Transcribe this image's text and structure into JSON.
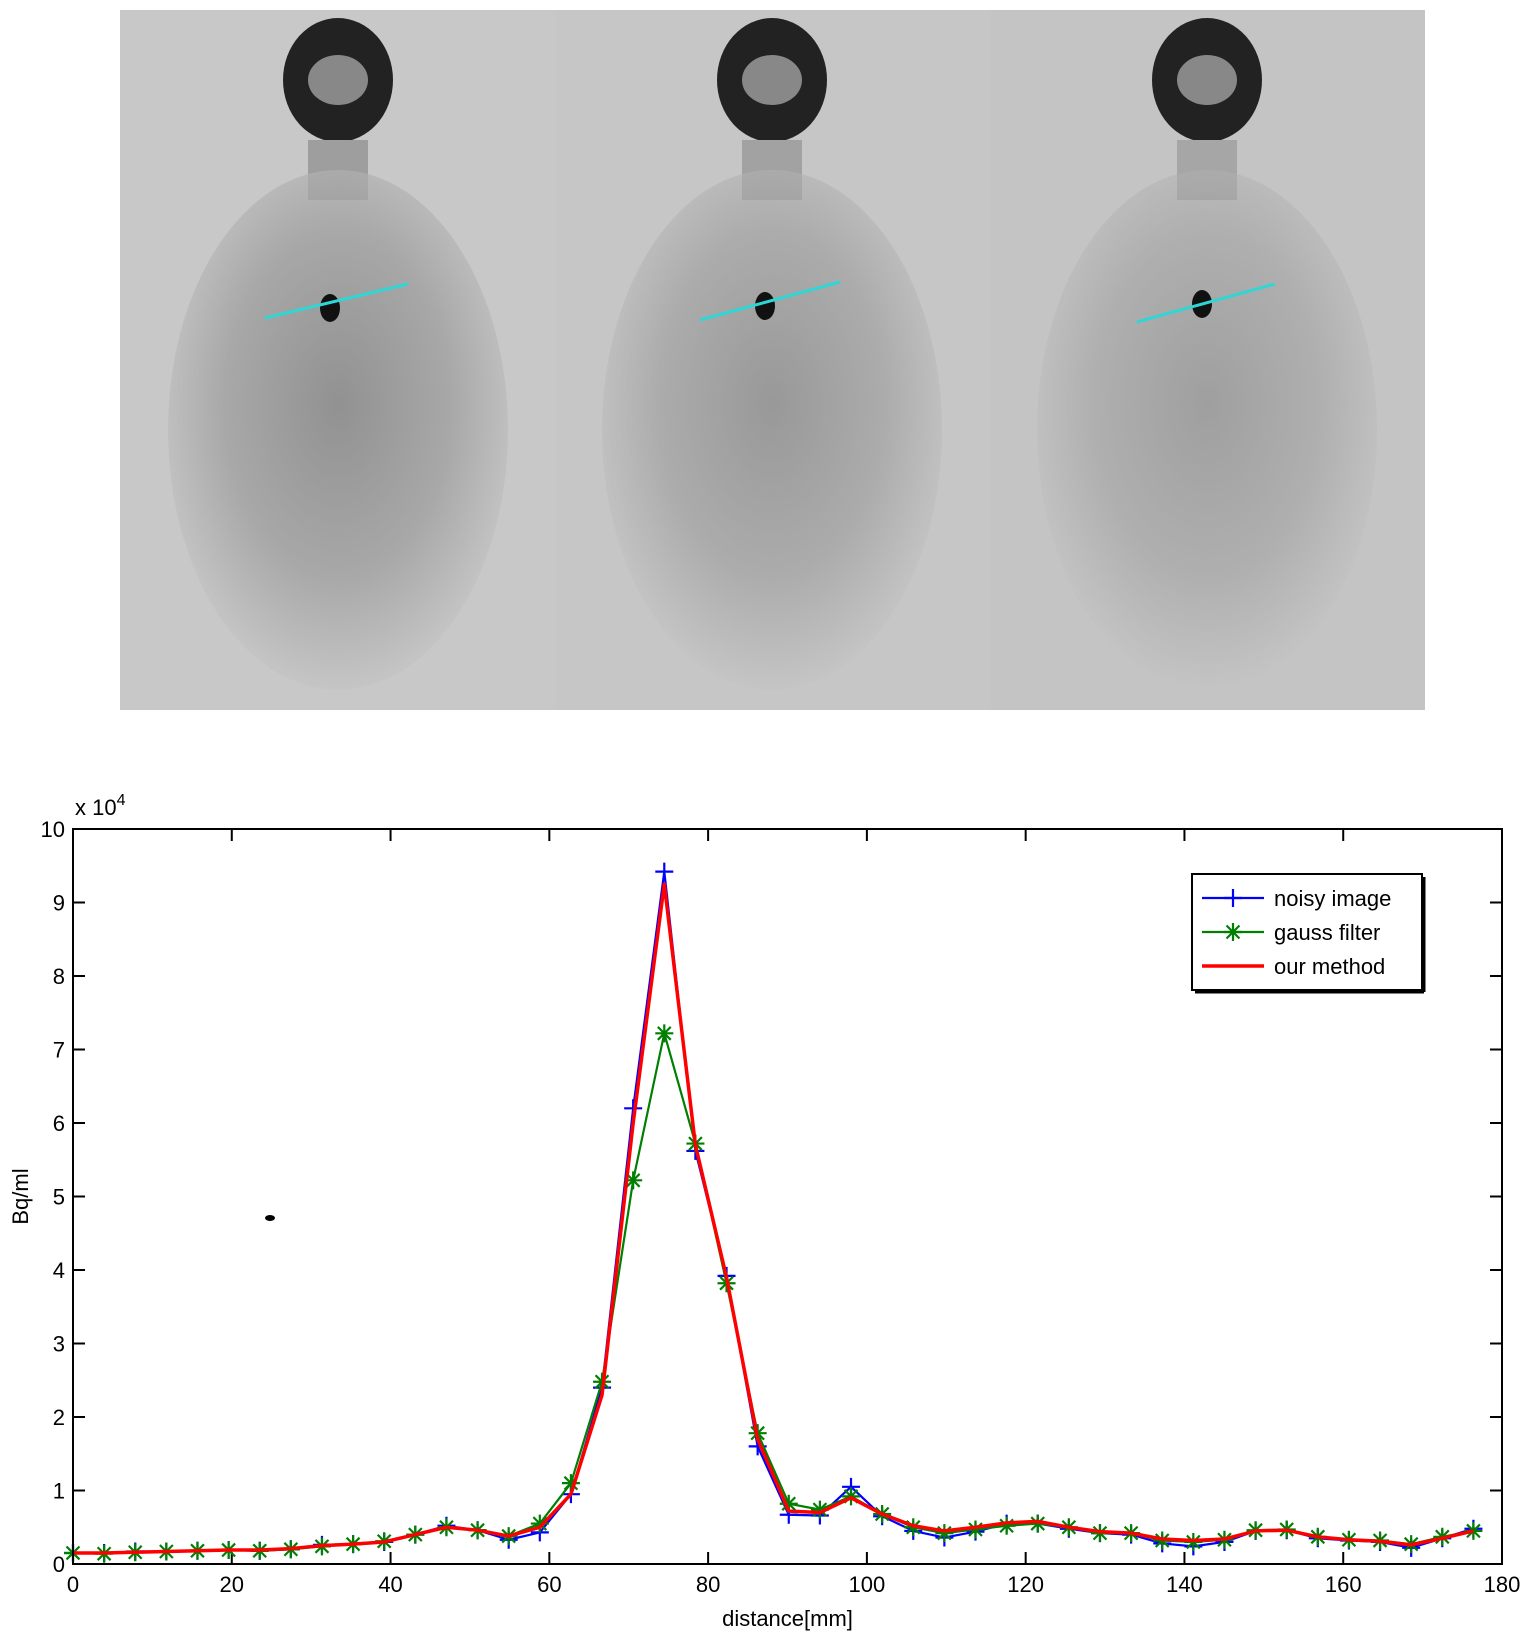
{
  "chart_data": {
    "type": "line",
    "xlabel": "distance[mm]",
    "ylabel": "Bq/ml",
    "y_multiplier_base": "x 10",
    "y_multiplier_exp": "4",
    "xlim": [
      0,
      180
    ],
    "xticks": [
      0,
      20,
      40,
      60,
      80,
      100,
      120,
      140,
      160,
      180
    ],
    "ylim": [
      0,
      10
    ],
    "yticks": [
      0,
      1,
      2,
      3,
      4,
      5,
      6,
      7,
      8,
      9,
      10
    ],
    "grid": false,
    "legend": "northeast",
    "x": [
      0,
      3.92,
      7.84,
      11.76,
      15.68,
      19.6,
      23.52,
      27.44,
      31.36,
      35.28,
      39.2,
      43.12,
      47.04,
      50.96,
      54.88,
      58.8,
      62.72,
      66.64,
      70.56,
      74.48,
      78.4,
      82.32,
      86.24,
      90.16,
      94.08,
      98,
      101.92,
      105.84,
      109.76,
      113.68,
      117.6,
      121.52,
      125.44,
      129.36,
      133.28,
      137.2,
      141.12,
      145.04,
      148.96,
      152.88,
      156.8,
      160.72,
      164.64,
      168.56,
      172.48,
      176.4
    ],
    "series": [
      {
        "name": "noisy image",
        "color": "#0000ff",
        "marker": "plus",
        "values": [
          0.15,
          0.15,
          0.17,
          0.17,
          0.18,
          0.19,
          0.18,
          0.2,
          0.26,
          0.27,
          0.3,
          0.4,
          0.52,
          0.46,
          0.33,
          0.43,
          0.95,
          2.4,
          6.2,
          9.42,
          5.62,
          3.92,
          1.6,
          0.67,
          0.66,
          1.05,
          0.65,
          0.45,
          0.36,
          0.44,
          0.55,
          0.55,
          0.48,
          0.42,
          0.4,
          0.28,
          0.24,
          0.3,
          0.45,
          0.46,
          0.35,
          0.32,
          0.3,
          0.22,
          0.35,
          0.48
        ]
      },
      {
        "name": "gauss filter",
        "color": "#007f00",
        "marker": "star",
        "values": [
          0.15,
          0.14,
          0.16,
          0.17,
          0.18,
          0.19,
          0.18,
          0.2,
          0.24,
          0.27,
          0.31,
          0.4,
          0.5,
          0.46,
          0.38,
          0.55,
          1.1,
          2.48,
          5.22,
          7.22,
          5.72,
          3.82,
          1.78,
          0.82,
          0.74,
          0.92,
          0.68,
          0.5,
          0.42,
          0.47,
          0.52,
          0.55,
          0.5,
          0.42,
          0.42,
          0.32,
          0.3,
          0.33,
          0.46,
          0.47,
          0.37,
          0.33,
          0.32,
          0.27,
          0.37,
          0.45
        ]
      },
      {
        "name": "our method",
        "color": "#ff0000",
        "marker": "none",
        "values": [
          0.15,
          0.15,
          0.16,
          0.17,
          0.18,
          0.19,
          0.19,
          0.21,
          0.25,
          0.27,
          0.3,
          0.4,
          0.5,
          0.46,
          0.38,
          0.5,
          0.95,
          2.3,
          6.0,
          9.25,
          5.7,
          3.9,
          1.7,
          0.72,
          0.7,
          0.9,
          0.68,
          0.52,
          0.45,
          0.5,
          0.56,
          0.58,
          0.5,
          0.44,
          0.42,
          0.34,
          0.32,
          0.34,
          0.45,
          0.46,
          0.37,
          0.33,
          0.31,
          0.26,
          0.35,
          0.45
        ]
      }
    ]
  }
}
